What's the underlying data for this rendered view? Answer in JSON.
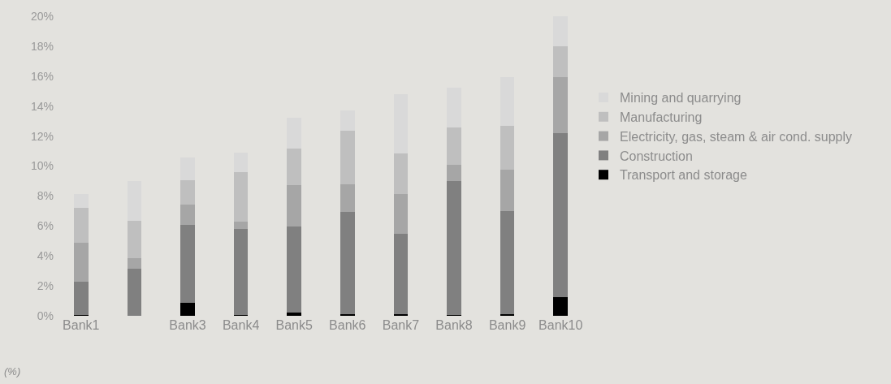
{
  "chart_data": {
    "type": "bar",
    "stacked": true,
    "categories": [
      "Bank1",
      null,
      "Bank3",
      "Bank4",
      "Bank5",
      "Bank6",
      "Bank7",
      "Bank8",
      "Bank9",
      "Bank10"
    ],
    "series": [
      {
        "name": "Transport and storage",
        "color": "#000000",
        "values": [
          0.05,
          0.0,
          0.88,
          0.03,
          0.23,
          0.09,
          0.12,
          0.04,
          0.12,
          1.22
        ]
      },
      {
        "name": "Construction",
        "color": "#808080",
        "values": [
          2.22,
          3.12,
          5.19,
          5.78,
          5.75,
          6.85,
          5.35,
          8.97,
          6.87,
          10.97
        ]
      },
      {
        "name": "Electricity, gas, steam & air cond. supply",
        "color": "#a6a6a6",
        "values": [
          2.6,
          0.74,
          1.35,
          0.49,
          2.76,
          1.86,
          2.64,
          1.09,
          2.76,
          3.72
        ]
      },
      {
        "name": "Manufacturing",
        "color": "#bfbfbf",
        "values": [
          2.32,
          2.48,
          1.64,
          3.28,
          2.43,
          3.55,
          2.74,
          2.5,
          2.96,
          2.09
        ]
      },
      {
        "name": "Mining and quarrying",
        "color": "#d9d9d9",
        "values": [
          0.95,
          2.65,
          1.51,
          1.32,
          2.07,
          1.37,
          3.93,
          2.64,
          3.2,
          2.0
        ]
      }
    ],
    "ylim": [
      0,
      20
    ],
    "yticks": [
      {
        "value": 0,
        "label": "0%"
      },
      {
        "value": 2,
        "label": "2%"
      },
      {
        "value": 4,
        "label": "4%"
      },
      {
        "value": 6,
        "label": "6%"
      },
      {
        "value": 8,
        "label": "8%"
      },
      {
        "value": 10,
        "label": "10%"
      },
      {
        "value": 12,
        "label": "12%"
      },
      {
        "value": 14,
        "label": "14%"
      },
      {
        "value": 16,
        "label": "16%"
      },
      {
        "value": 18,
        "label": "18%"
      },
      {
        "value": 20,
        "label": "20%"
      }
    ],
    "grid": false,
    "legend": "right",
    "annotations": [
      "(%)"
    ]
  }
}
